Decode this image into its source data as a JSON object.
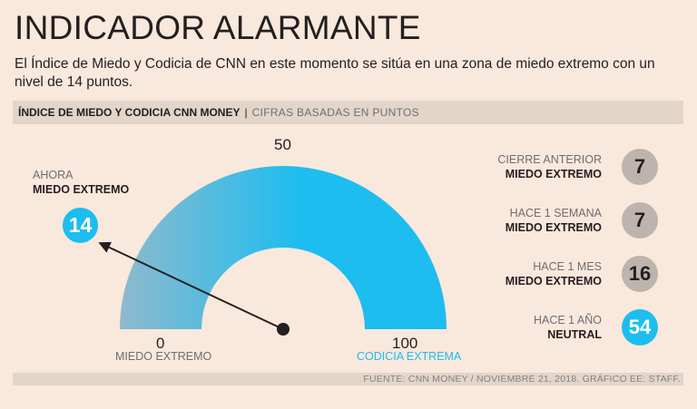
{
  "title": "INDICADOR ALARMANTE",
  "subtitle": "El Índice de Miedo y Codicia de CNN en este momento se sitúa en una zona de miedo extremo con un nivel de 14 puntos.",
  "header": {
    "bold": "ÍNDICE DE MIEDO Y CODICIA CNN MONEY",
    "separator": "|",
    "light": "CIFRAS BASADAS EN PUNTOS"
  },
  "now": {
    "label": "AHORA",
    "state": "MIEDO EXTREMO",
    "value": "14"
  },
  "gauge_labels": {
    "min": "0",
    "mid": "50",
    "max": "100",
    "min_zone": "MIEDO EXTREMO",
    "max_zone": "CODICIA EXTREMA"
  },
  "history": [
    {
      "label": "CIERRE ANTERIOR",
      "state": "MIEDO EXTREMO",
      "value": "7"
    },
    {
      "label": "HACE 1 SEMANA",
      "state": "MIEDO EXTREMO",
      "value": "7"
    },
    {
      "label": "HACE 1 MES",
      "state": "MIEDO EXTREMO",
      "value": "16"
    },
    {
      "label": "HACE 1 AÑO",
      "state": "NEUTRAL",
      "value": "54"
    }
  ],
  "footer": "FUENTE: CNN MONEY / NOVIEMBRE 21, 2018. GRÁFICO EE: STAFF.",
  "colors": {
    "background": "#f9e8dc",
    "accent": "#1dbdf0",
    "fear": "#8fb9cd",
    "grey_circle": "#bcb4ad",
    "text": "#231f20",
    "muted": "#6d6e71"
  },
  "chart_data": {
    "type": "gauge",
    "title": "ÍNDICE DE MIEDO Y CODICIA CNN MONEY",
    "range": [
      0,
      100
    ],
    "value": 14,
    "min_label": "MIEDO EXTREMO",
    "max_label": "CODICIA EXTREMA",
    "history": [
      {
        "label": "CIERRE ANTERIOR",
        "value": 7
      },
      {
        "label": "HACE 1 SEMANA",
        "value": 7
      },
      {
        "label": "HACE 1 MES",
        "value": 16
      },
      {
        "label": "HACE 1 AÑO",
        "value": 54
      }
    ]
  }
}
